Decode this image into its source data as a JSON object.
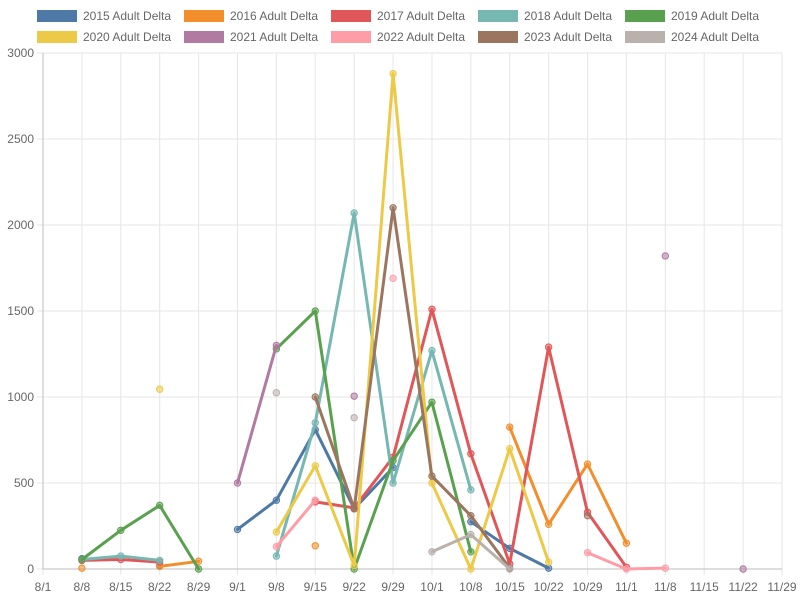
{
  "chart_data": {
    "type": "line",
    "title": "",
    "xlabel": "",
    "ylabel": "",
    "ylim": [
      0,
      3000
    ],
    "y_ticks": [
      0,
      500,
      1000,
      1500,
      2000,
      2500,
      3000
    ],
    "categories": [
      "8/1",
      "8/8",
      "8/15",
      "8/22",
      "8/29",
      "9/1",
      "9/8",
      "9/15",
      "9/22",
      "9/29",
      "10/1",
      "10/8",
      "10/15",
      "10/22",
      "10/29",
      "11/1",
      "11/8",
      "11/15",
      "11/22",
      "11/29"
    ],
    "legend_position": "top",
    "grid": true,
    "series": [
      {
        "name": "2015 Adult Delta",
        "color": "#4e79a7",
        "values": [
          null,
          60,
          null,
          20,
          null,
          230,
          400,
          810,
          350,
          590,
          null,
          275,
          120,
          5,
          null,
          null,
          null,
          null,
          null,
          null
        ]
      },
      {
        "name": "2016 Adult Delta",
        "color": "#f28e2b",
        "values": [
          null,
          5,
          null,
          15,
          45,
          null,
          null,
          135,
          null,
          null,
          null,
          null,
          825,
          260,
          610,
          150,
          null,
          null,
          null,
          null
        ]
      },
      {
        "name": "2017 Adult Delta",
        "color": "#e15759",
        "values": [
          null,
          50,
          55,
          40,
          null,
          null,
          null,
          390,
          355,
          650,
          1510,
          670,
          30,
          1290,
          330,
          10,
          null,
          null,
          null,
          null
        ]
      },
      {
        "name": "2018 Adult Delta",
        "color": "#76b7b2",
        "values": [
          null,
          55,
          75,
          50,
          null,
          null,
          75,
          850,
          2070,
          500,
          1270,
          460,
          null,
          null,
          null,
          null,
          null,
          null,
          null,
          null
        ]
      },
      {
        "name": "2019 Adult Delta",
        "color": "#59a14f",
        "values": [
          null,
          55,
          225,
          370,
          0,
          null,
          1280,
          1500,
          0,
          630,
          970,
          100,
          null,
          null,
          null,
          null,
          null,
          null,
          null,
          null
        ]
      },
      {
        "name": "2020 Adult Delta",
        "color": "#edc948",
        "values": [
          null,
          null,
          null,
          1045,
          null,
          null,
          215,
          600,
          20,
          2880,
          500,
          0,
          700,
          40,
          null,
          null,
          null,
          null,
          null,
          null
        ]
      },
      {
        "name": "2021 Adult Delta",
        "color": "#b07aa1",
        "values": [
          null,
          null,
          null,
          null,
          null,
          500,
          1300,
          null,
          1005,
          null,
          null,
          null,
          null,
          null,
          null,
          null,
          1820,
          null,
          0,
          null
        ]
      },
      {
        "name": "2022 Adult Delta",
        "color": "#ff9da7",
        "values": [
          null,
          null,
          null,
          null,
          null,
          null,
          130,
          400,
          null,
          1690,
          null,
          null,
          null,
          null,
          95,
          0,
          5,
          null,
          null,
          null
        ]
      },
      {
        "name": "2023 Adult Delta",
        "color": "#9c755f",
        "values": [
          null,
          null,
          null,
          null,
          null,
          null,
          null,
          1000,
          350,
          2100,
          540,
          310,
          5,
          null,
          310,
          null,
          null,
          null,
          null,
          null
        ]
      },
      {
        "name": "2024 Adult Delta",
        "color": "#bab0ac",
        "values": [
          null,
          null,
          null,
          null,
          null,
          null,
          1025,
          null,
          880,
          null,
          100,
          200,
          0,
          null,
          null,
          null,
          null,
          null,
          null,
          null
        ]
      }
    ]
  }
}
